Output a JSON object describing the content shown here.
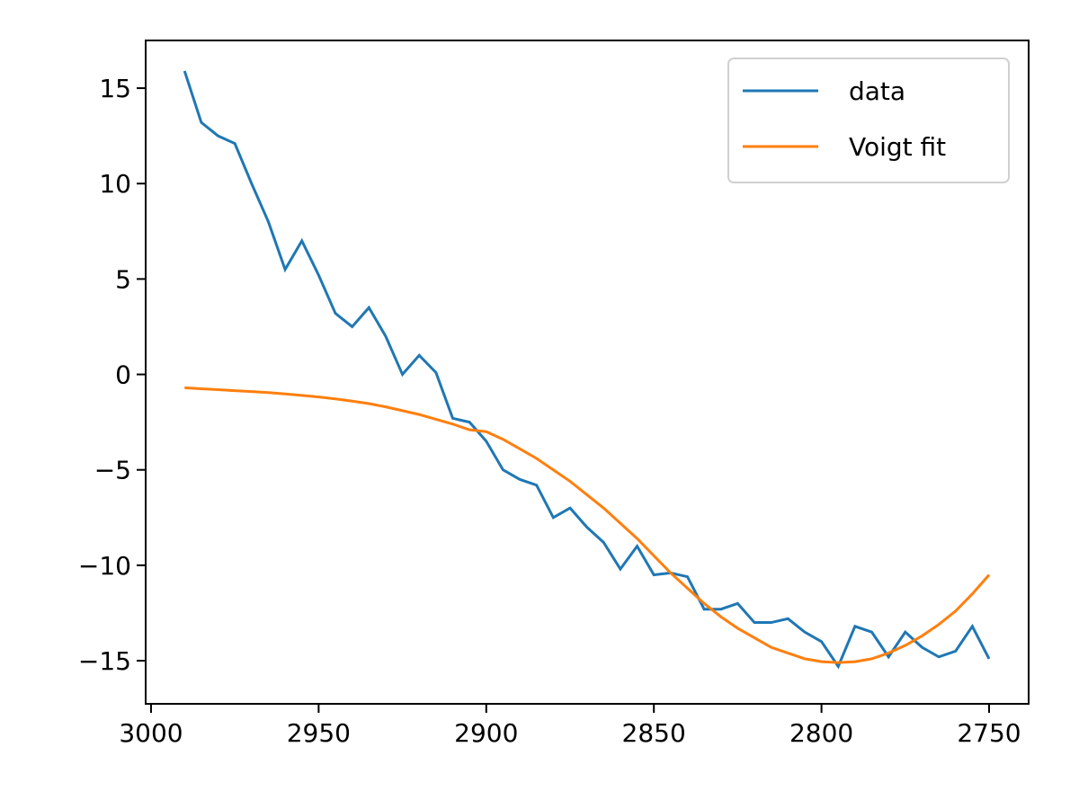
{
  "chart_data": {
    "type": "line",
    "x": [
      2990,
      2985,
      2980,
      2975,
      2970,
      2965,
      2960,
      2955,
      2950,
      2945,
      2940,
      2935,
      2930,
      2925,
      2920,
      2915,
      2910,
      2905,
      2900,
      2895,
      2890,
      2885,
      2880,
      2875,
      2870,
      2865,
      2860,
      2855,
      2850,
      2845,
      2840,
      2835,
      2830,
      2825,
      2820,
      2815,
      2810,
      2805,
      2800,
      2795,
      2790,
      2785,
      2780,
      2775,
      2770,
      2765,
      2760,
      2755,
      2750
    ],
    "series": [
      {
        "name": "data",
        "color": "#1f77b4",
        "values": [
          15.9,
          13.2,
          12.5,
          12.1,
          10.0,
          8.0,
          5.5,
          7.0,
          5.2,
          3.2,
          2.5,
          3.5,
          2.0,
          0.0,
          1.0,
          0.1,
          -2.3,
          -2.5,
          -3.5,
          -5.0,
          -5.5,
          -5.8,
          -7.5,
          -7.0,
          -8.0,
          -8.8,
          -10.2,
          -9.0,
          -10.5,
          -10.4,
          -10.6,
          -12.3,
          -12.3,
          -12.0,
          -13.0,
          -13.0,
          -12.8,
          -13.5,
          -14.0,
          -15.3,
          -13.2,
          -13.5,
          -14.8,
          -13.5,
          -14.3,
          -14.8,
          -14.5,
          -13.2,
          -14.9
        ]
      },
      {
        "name": "Voigt fit",
        "color": "#ff7f0e",
        "values": [
          -0.7,
          -0.75,
          -0.8,
          -0.85,
          -0.9,
          -0.95,
          -1.02,
          -1.1,
          -1.18,
          -1.28,
          -1.4,
          -1.53,
          -1.7,
          -1.9,
          -2.1,
          -2.35,
          -2.6,
          -2.9,
          -3.0,
          -3.4,
          -3.9,
          -4.4,
          -5.0,
          -5.6,
          -6.3,
          -7.0,
          -7.8,
          -8.6,
          -9.5,
          -10.4,
          -11.2,
          -12.0,
          -12.7,
          -13.3,
          -13.8,
          -14.3,
          -14.6,
          -14.9,
          -15.05,
          -15.1,
          -15.05,
          -14.9,
          -14.6,
          -14.2,
          -13.7,
          -13.1,
          -12.4,
          -11.5,
          -10.5
        ]
      }
    ],
    "xlim": [
      3001.6,
      2738.2
    ],
    "xticks": [
      3000,
      2950,
      2900,
      2850,
      2800,
      2750
    ],
    "ylim": [
      -17.26,
      17.5
    ],
    "yticks": [
      {
        "value": -15,
        "label": "−15"
      },
      {
        "value": -10,
        "label": "−10"
      },
      {
        "value": -5,
        "label": "−5"
      },
      0,
      5,
      10,
      15
    ],
    "legend": "upper right"
  }
}
